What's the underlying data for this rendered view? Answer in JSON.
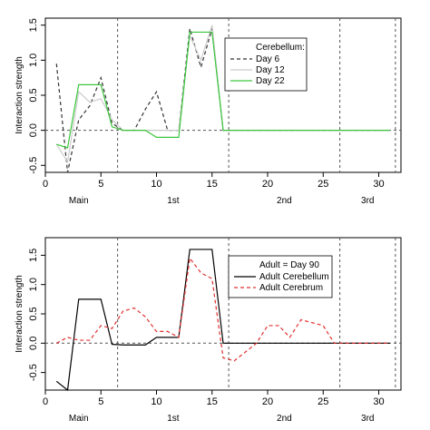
{
  "chart_data": [
    {
      "type": "line",
      "ylabel": "Interaction strength",
      "xlim": [
        0,
        32
      ],
      "ylim": [
        -0.6,
        1.6
      ],
      "xticks": [
        0,
        5,
        10,
        15,
        20,
        25,
        30
      ],
      "yticks": [
        -0.5,
        0.0,
        0.5,
        1.0,
        1.5
      ],
      "tick_labels_y": [
        "-0.5",
        "0.0",
        "0.5",
        "1.0",
        "1.5"
      ],
      "region_labels": [
        {
          "text": "Main",
          "x": 3
        },
        {
          "text": "1st",
          "x": 11.5
        },
        {
          "text": "2nd",
          "x": 21.5
        },
        {
          "text": "3rd",
          "x": 29
        }
      ],
      "vlines": [
        6.5,
        16.5,
        26.5,
        31.5
      ],
      "hline": 0,
      "legend": {
        "title": "Cerebellum:",
        "position": "top-right",
        "entries": [
          "Day 6",
          "Day 12",
          "Day 22"
        ]
      },
      "series": [
        {
          "name": "Day 6",
          "color": "#333333",
          "dash": "4,3",
          "x": [
            1,
            2,
            3,
            4,
            5,
            6,
            7,
            8,
            9,
            10,
            11,
            12,
            13,
            14,
            15,
            16
          ],
          "y": [
            0.95,
            -0.6,
            0.15,
            0.35,
            0.75,
            0.1,
            0.0,
            0.0,
            0.3,
            0.55,
            0.0,
            0.0,
            1.45,
            0.9,
            1.45,
            0.0
          ]
        },
        {
          "name": "Day 12",
          "color": "#cccccc",
          "dash": "none",
          "x": [
            1,
            2,
            3,
            4,
            5,
            6,
            7,
            8,
            9,
            10,
            11,
            12,
            13,
            14,
            15,
            16
          ],
          "y": [
            -0.2,
            -0.45,
            0.55,
            0.4,
            0.45,
            0.15,
            0.0,
            0.0,
            0.0,
            0.0,
            0.0,
            0.0,
            1.35,
            1.0,
            1.5,
            0.0
          ]
        },
        {
          "name": "Day 22",
          "color": "#3cc63c",
          "dash": "none",
          "x": [
            1,
            2,
            3,
            4,
            5,
            6,
            7,
            8,
            9,
            10,
            11,
            12,
            13,
            14,
            15,
            16
          ],
          "y": [
            -0.2,
            -0.25,
            0.65,
            0.65,
            0.65,
            0.05,
            0.0,
            0.0,
            0.0,
            -0.1,
            -0.1,
            -0.1,
            1.4,
            1.4,
            1.4,
            0.0
          ]
        }
      ],
      "extend_to": 31,
      "extend_value": 0
    },
    {
      "type": "line",
      "ylabel": "Interaction strength",
      "xlim": [
        0,
        32
      ],
      "ylim": [
        -0.8,
        1.8
      ],
      "xticks": [
        0,
        5,
        10,
        15,
        20,
        25,
        30
      ],
      "yticks": [
        -0.5,
        0.0,
        0.5,
        1.0,
        1.5
      ],
      "tick_labels_y": [
        "-0.5",
        "0.0",
        "0.5",
        "1.0",
        "1.5"
      ],
      "region_labels": [
        {
          "text": "Main",
          "x": 3
        },
        {
          "text": "1st",
          "x": 11.5
        },
        {
          "text": "2nd",
          "x": 21.5
        },
        {
          "text": "3rd",
          "x": 29
        }
      ],
      "vlines": [
        6.5,
        16.5,
        26.5,
        31.5
      ],
      "hline": 0,
      "legend": {
        "title": "Adult = Day 90",
        "position": "top-right",
        "entries": [
          "Adult Cerebellum",
          "Adult Cerebrum"
        ]
      },
      "series": [
        {
          "name": "Adult Cerebellum",
          "color": "#000000",
          "dash": "none",
          "x": [
            1,
            2,
            3,
            4,
            5,
            6,
            7,
            8,
            9,
            10,
            11,
            12,
            13,
            14,
            15,
            16
          ],
          "y": [
            -0.65,
            -0.8,
            0.75,
            0.75,
            0.75,
            -0.02,
            -0.03,
            -0.03,
            -0.03,
            0.1,
            0.1,
            0.1,
            1.6,
            1.6,
            1.6,
            0.0
          ]
        },
        {
          "name": "Adult Cerebrum",
          "color": "#e03030",
          "dash": "4,3",
          "x": [
            1,
            2,
            3,
            4,
            5,
            6,
            7,
            8,
            9,
            10,
            11,
            12,
            13,
            14,
            15,
            16,
            17,
            18,
            19,
            20,
            21,
            22,
            23,
            24,
            25,
            26
          ],
          "y": [
            0.0,
            0.1,
            0.05,
            0.05,
            0.3,
            0.25,
            0.55,
            0.6,
            0.45,
            0.2,
            0.2,
            0.1,
            1.45,
            1.2,
            1.1,
            -0.25,
            -0.3,
            -0.15,
            0.0,
            0.3,
            0.3,
            0.1,
            0.4,
            0.35,
            0.3,
            0.0
          ]
        }
      ],
      "extend_to": 31,
      "extend_value": 0
    }
  ]
}
